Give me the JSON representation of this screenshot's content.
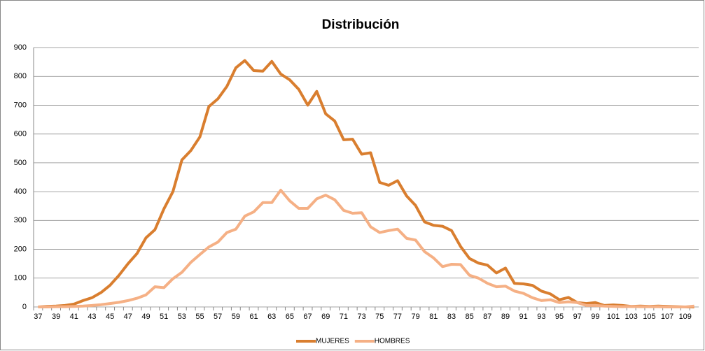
{
  "chart_data": {
    "type": "line",
    "title": "Distribución",
    "categories": [
      "37",
      null,
      "39",
      null,
      "41",
      null,
      "43",
      null,
      "45",
      null,
      "47",
      null,
      "49",
      null,
      "51",
      null,
      "53",
      null,
      "55",
      null,
      "57",
      null,
      "59",
      null,
      "61",
      null,
      "63",
      null,
      "65",
      null,
      "67",
      null,
      "69",
      null,
      "71",
      null,
      "73",
      null,
      "75",
      null,
      "77",
      null,
      "79",
      null,
      "81",
      null,
      "83",
      null,
      "85",
      null,
      "87",
      null,
      "89",
      null,
      "91",
      null,
      "93",
      null,
      "95",
      null,
      "97",
      null,
      "99",
      null,
      "101",
      null,
      "103",
      null,
      "105",
      null,
      "107",
      null,
      "109",
      null
    ],
    "series": [
      {
        "name": "MUJERES",
        "color": "#d97e2f",
        "values": [
          0,
          2,
          3,
          5,
          10,
          22,
          32,
          50,
          75,
          110,
          150,
          185,
          240,
          268,
          340,
          400,
          510,
          543,
          590,
          695,
          722,
          765,
          830,
          855,
          820,
          818,
          852,
          808,
          788,
          755,
          700,
          748,
          670,
          645,
          580,
          582,
          530,
          535,
          432,
          422,
          438,
          385,
          352,
          295,
          283,
          280,
          265,
          210,
          168,
          152,
          145,
          118,
          135,
          82,
          80,
          75,
          55,
          45,
          25,
          33,
          15,
          12,
          15,
          5,
          7,
          5,
          2,
          3,
          2,
          3,
          2,
          1,
          0,
          0
        ]
      },
      {
        "name": "HOMBRES",
        "color": "#f5b085",
        "values": [
          0,
          0,
          1,
          1,
          2,
          3,
          5,
          8,
          12,
          16,
          22,
          30,
          42,
          70,
          67,
          98,
          120,
          155,
          182,
          208,
          225,
          258,
          270,
          315,
          330,
          362,
          362,
          405,
          368,
          342,
          342,
          375,
          388,
          372,
          335,
          325,
          327,
          278,
          258,
          265,
          270,
          238,
          232,
          192,
          170,
          140,
          148,
          147,
          110,
          100,
          82,
          70,
          72,
          55,
          47,
          32,
          22,
          25,
          15,
          18,
          15,
          5,
          5,
          3,
          2,
          1,
          2,
          1,
          1,
          1,
          0,
          0,
          0,
          3
        ]
      }
    ],
    "ylim": [
      0,
      900
    ],
    "yticks": [
      0,
      100,
      200,
      300,
      400,
      500,
      600,
      700,
      800,
      900
    ],
    "grid": true,
    "legend": "bottom"
  }
}
